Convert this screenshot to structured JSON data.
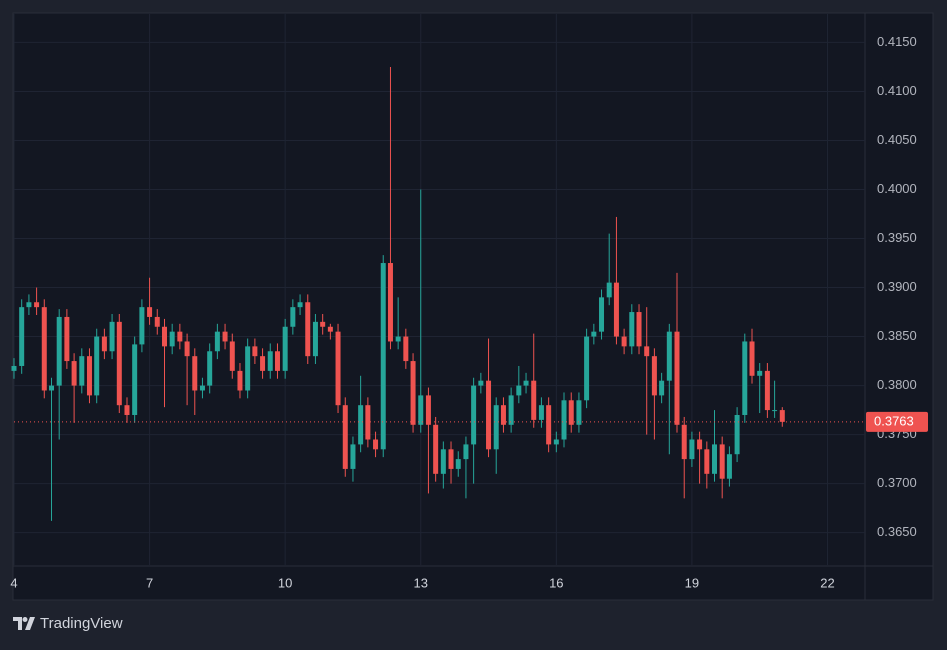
{
  "chart_data": {
    "type": "candlestick",
    "up_color": "#26a69a",
    "down_color": "#ef5350",
    "grid": true,
    "xlim": [
      4,
      22.83
    ],
    "xticks": [
      4,
      7,
      10,
      13,
      16,
      19,
      22
    ],
    "ylim": [
      0.3617,
      0.4179
    ],
    "yticks": [
      {
        "value": 0.365,
        "label": "0.3650"
      },
      {
        "value": 0.37,
        "label": "0.3700"
      },
      {
        "value": 0.375,
        "label": "0.3750"
      },
      {
        "value": 0.38,
        "label": "0.3800"
      },
      {
        "value": 0.385,
        "label": "0.3850"
      },
      {
        "value": 0.39,
        "label": "0.3900"
      },
      {
        "value": 0.395,
        "label": "0.3950"
      },
      {
        "value": 0.4,
        "label": "0.4000"
      },
      {
        "value": 0.405,
        "label": "0.4050"
      },
      {
        "value": 0.41,
        "label": "0.4100"
      },
      {
        "value": 0.415,
        "label": "0.4150"
      }
    ],
    "last_price": 0.3763,
    "x": [
      4,
      4.17,
      4.33,
      4.5,
      4.67,
      4.83,
      5,
      5.17,
      5.33,
      5.5,
      5.67,
      5.83,
      6,
      6.17,
      6.33,
      6.5,
      6.67,
      6.83,
      7,
      7.17,
      7.33,
      7.5,
      7.67,
      7.83,
      8,
      8.17,
      8.33,
      8.5,
      8.67,
      8.83,
      9,
      9.17,
      9.33,
      9.5,
      9.67,
      9.83,
      10,
      10.17,
      10.33,
      10.5,
      10.67,
      10.83,
      11,
      11.17,
      11.33,
      11.5,
      11.67,
      11.83,
      12,
      12.17,
      12.33,
      12.5,
      12.67,
      12.83,
      13,
      13.17,
      13.33,
      13.5,
      13.67,
      13.83,
      14,
      14.17,
      14.33,
      14.5,
      14.67,
      14.83,
      15,
      15.17,
      15.33,
      15.5,
      15.67,
      15.83,
      16,
      16.17,
      16.33,
      16.5,
      16.67,
      16.83,
      17,
      17.17,
      17.33,
      17.5,
      17.67,
      17.83,
      18,
      18.17,
      18.33,
      18.5,
      18.67,
      18.83,
      19,
      19.17,
      19.33,
      19.5,
      19.67,
      19.83,
      20,
      20.17,
      20.33,
      20.5,
      20.67,
      20.83,
      21
    ],
    "open": [
      0.3815,
      0.382,
      0.388,
      0.3885,
      0.388,
      0.3795,
      0.38,
      0.387,
      0.3825,
      0.38,
      0.383,
      0.379,
      0.385,
      0.3835,
      0.3865,
      0.378,
      0.377,
      0.3842,
      0.388,
      0.387,
      0.386,
      0.384,
      0.3855,
      0.3845,
      0.383,
      0.3795,
      0.38,
      0.3835,
      0.3855,
      0.3845,
      0.3815,
      0.3795,
      0.384,
      0.383,
      0.3815,
      0.3835,
      0.3815,
      0.386,
      0.388,
      0.3885,
      0.383,
      0.3865,
      0.386,
      0.3855,
      0.378,
      0.3715,
      0.374,
      0.378,
      0.3745,
      0.3735,
      0.3925,
      0.3845,
      0.385,
      0.3825,
      0.376,
      0.379,
      0.376,
      0.371,
      0.3735,
      0.3715,
      0.3725,
      0.374,
      0.38,
      0.3805,
      0.3735,
      0.378,
      0.376,
      0.379,
      0.38,
      0.3805,
      0.3765,
      0.378,
      0.374,
      0.3745,
      0.3785,
      0.376,
      0.3785,
      0.385,
      0.3855,
      0.389,
      0.3905,
      0.385,
      0.384,
      0.3875,
      0.384,
      0.383,
      0.379,
      0.3805,
      0.3855,
      0.376,
      0.3725,
      0.3745,
      0.3735,
      0.371,
      0.374,
      0.3705,
      0.373,
      0.377,
      0.3845,
      0.381,
      0.3815,
      0.3775,
      0.3775
    ],
    "high": [
      0.3828,
      0.3888,
      0.3893,
      0.39,
      0.3888,
      0.3808,
      0.3878,
      0.3878,
      0.3833,
      0.3838,
      0.3838,
      0.3858,
      0.3858,
      0.3873,
      0.3873,
      0.3788,
      0.385,
      0.3888,
      0.391,
      0.3878,
      0.3868,
      0.3863,
      0.3863,
      0.3853,
      0.3838,
      0.3808,
      0.3843,
      0.3863,
      0.3863,
      0.3853,
      0.3823,
      0.3848,
      0.3848,
      0.3838,
      0.3843,
      0.3843,
      0.3868,
      0.3888,
      0.3893,
      0.3893,
      0.3873,
      0.3873,
      0.3863,
      0.3863,
      0.3788,
      0.3748,
      0.381,
      0.3788,
      0.3753,
      0.3933,
      0.4125,
      0.389,
      0.3858,
      0.3833,
      0.4,
      0.3798,
      0.3768,
      0.3743,
      0.3743,
      0.3733,
      0.3748,
      0.3808,
      0.3813,
      0.3848,
      0.3788,
      0.3788,
      0.3798,
      0.382,
      0.3813,
      0.3853,
      0.3788,
      0.3788,
      0.3753,
      0.3793,
      0.3793,
      0.3793,
      0.3858,
      0.3863,
      0.3898,
      0.3955,
      0.3972,
      0.3858,
      0.3883,
      0.3883,
      0.388,
      0.3838,
      0.3813,
      0.3863,
      0.3915,
      0.3768,
      0.3753,
      0.3753,
      0.3743,
      0.3775,
      0.3748,
      0.3738,
      0.3778,
      0.3853,
      0.3858,
      0.3823,
      0.3823,
      0.3805,
      0.3778
    ],
    "low": [
      0.3807,
      0.3812,
      0.3872,
      0.3872,
      0.3787,
      0.3662,
      0.3745,
      0.3817,
      0.3762,
      0.3792,
      0.3782,
      0.3782,
      0.3827,
      0.3827,
      0.3772,
      0.3762,
      0.3762,
      0.3834,
      0.3862,
      0.3852,
      0.3778,
      0.3832,
      0.3837,
      0.378,
      0.377,
      0.3787,
      0.3792,
      0.3827,
      0.3837,
      0.3807,
      0.3787,
      0.3787,
      0.3822,
      0.3807,
      0.3807,
      0.3807,
      0.3807,
      0.3852,
      0.3872,
      0.3822,
      0.3822,
      0.3852,
      0.3847,
      0.3772,
      0.3707,
      0.3702,
      0.3732,
      0.3737,
      0.3727,
      0.3727,
      0.3837,
      0.3837,
      0.3817,
      0.3752,
      0.3752,
      0.369,
      0.3702,
      0.3695,
      0.37,
      0.3707,
      0.3685,
      0.37,
      0.3792,
      0.3727,
      0.371,
      0.3752,
      0.3752,
      0.3782,
      0.3792,
      0.3757,
      0.3757,
      0.3732,
      0.3732,
      0.3737,
      0.3752,
      0.3752,
      0.3777,
      0.3842,
      0.3847,
      0.3882,
      0.3842,
      0.3832,
      0.3832,
      0.3832,
      0.375,
      0.3745,
      0.3782,
      0.373,
      0.3752,
      0.3685,
      0.3717,
      0.37,
      0.3695,
      0.3702,
      0.3685,
      0.3697,
      0.3722,
      0.3762,
      0.3802,
      0.3772,
      0.3767,
      0.3767,
      0.3758
    ],
    "close": [
      0.382,
      0.388,
      0.3885,
      0.388,
      0.3795,
      0.38,
      0.387,
      0.3825,
      0.38,
      0.383,
      0.379,
      0.385,
      0.3835,
      0.3865,
      0.378,
      0.377,
      0.3842,
      0.388,
      0.387,
      0.386,
      0.384,
      0.3855,
      0.3845,
      0.383,
      0.3795,
      0.38,
      0.3835,
      0.3855,
      0.3845,
      0.3815,
      0.3795,
      0.384,
      0.383,
      0.3815,
      0.3835,
      0.3815,
      0.386,
      0.388,
      0.3885,
      0.383,
      0.3865,
      0.386,
      0.3855,
      0.378,
      0.3715,
      0.374,
      0.378,
      0.3745,
      0.3735,
      0.3925,
      0.3845,
      0.385,
      0.3825,
      0.376,
      0.379,
      0.376,
      0.371,
      0.3735,
      0.3715,
      0.3725,
      0.374,
      0.38,
      0.3805,
      0.3735,
      0.378,
      0.376,
      0.379,
      0.38,
      0.3805,
      0.3765,
      0.378,
      0.374,
      0.3745,
      0.3785,
      0.376,
      0.3785,
      0.385,
      0.3855,
      0.389,
      0.3905,
      0.385,
      0.384,
      0.3875,
      0.384,
      0.383,
      0.379,
      0.3805,
      0.3855,
      0.376,
      0.3725,
      0.3745,
      0.3735,
      0.371,
      0.374,
      0.3705,
      0.373,
      0.377,
      0.3845,
      0.381,
      0.3815,
      0.3775,
      0.3775,
      0.3763
    ]
  },
  "brand": "TradingView"
}
